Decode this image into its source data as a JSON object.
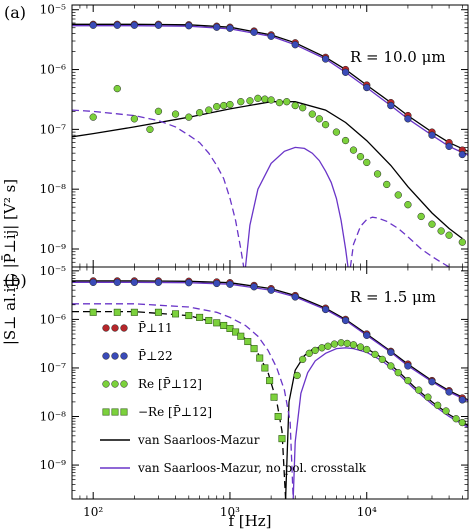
{
  "chart_data": [
    {
      "type": "scatter",
      "panel_label": "(a)",
      "annotation": "R = 10.0 μm",
      "xscale": "log",
      "yscale": "log",
      "xlim": [
        70,
        55000
      ],
      "ylim": [
        5e-10,
        1.2e-05
      ],
      "yticks": [
        "10⁻⁹",
        "10⁻⁸",
        "10⁻⁷",
        "10⁻⁶",
        "10⁻⁵"
      ],
      "series": [
        {
          "key": "P11",
          "kind": "markers",
          "marker": "circle",
          "color": "#b5262a",
          "x": [
            100,
            150,
            200,
            300,
            500,
            800,
            1000,
            1500,
            2000,
            3000,
            5000,
            7000,
            10000,
            15000,
            20000,
            30000,
            40000,
            50000
          ],
          "y": [
            5.7e-06,
            5.7e-06,
            5.7e-06,
            5.7e-06,
            5.6e-06,
            5.3e-06,
            5.1e-06,
            4.4e-06,
            3.8e-06,
            2.8e-06,
            1.6e-06,
            1e-06,
            5.5e-07,
            2.8e-07,
            1.7e-07,
            9e-08,
            6e-08,
            4.5e-08
          ]
        },
        {
          "key": "P22",
          "kind": "markers",
          "marker": "circle",
          "color": "#3a4bb8",
          "x": [
            100,
            150,
            200,
            300,
            500,
            800,
            1000,
            1500,
            2000,
            3000,
            5000,
            7000,
            10000,
            15000,
            20000,
            30000,
            40000,
            50000
          ],
          "y": [
            5.5e-06,
            5.5e-06,
            5.5e-06,
            5.5e-06,
            5.4e-06,
            5.1e-06,
            4.9e-06,
            4.2e-06,
            3.6e-06,
            2.6e-06,
            1.5e-06,
            9e-07,
            5e-07,
            2.5e-07,
            1.5e-07,
            8e-08,
            5.2e-08,
            3.8e-08
          ]
        },
        {
          "key": "ReP12",
          "kind": "markers",
          "marker": "circle",
          "color": "#7cd13c",
          "x": [
            100,
            150,
            200,
            260,
            300,
            400,
            500,
            600,
            700,
            800,
            900,
            1000,
            1200,
            1400,
            1600,
            1800,
            2000,
            2300,
            2600,
            3000,
            3400,
            4000,
            4500,
            5000,
            6000,
            7000,
            8000,
            9000,
            10000,
            12000,
            14000,
            17000,
            20000,
            25000,
            30000,
            35000,
            40000,
            50000
          ],
          "y": [
            1.6e-07,
            4.8e-07,
            1.5e-07,
            1e-07,
            2e-07,
            1.8e-07,
            1.6e-07,
            1.9e-07,
            2.1e-07,
            2.4e-07,
            2.5e-07,
            2.6e-07,
            2.9e-07,
            3e-07,
            3.3e-07,
            3.2e-07,
            3.1e-07,
            2.8e-07,
            2.9e-07,
            2.5e-07,
            2.3e-07,
            1.8e-07,
            1.5e-07,
            1.2e-07,
            9e-08,
            6.5e-08,
            4.5e-08,
            3.5e-08,
            2.8e-08,
            1.8e-08,
            1.2e-08,
            8e-09,
            5.5e-09,
            3.5e-09,
            2.6e-09,
            2e-09,
            1.7e-09,
            1.3e-09
          ]
        },
        {
          "key": "vsm",
          "kind": "line",
          "color": "#000000",
          "dash": "",
          "x": [
            70,
            100,
            200,
            500,
            1000,
            2000,
            3000,
            5000,
            7000,
            10000,
            15000,
            20000,
            30000,
            40000,
            50000
          ],
          "y": [
            7.5e-08,
            8.5e-08,
            1.1e-07,
            1.6e-07,
            2.2e-07,
            2.9e-07,
            2.9e-07,
            2.1e-07,
            1.3e-07,
            6.5e-08,
            2.5e-08,
            1.1e-08,
            4e-09,
            2.2e-09,
            1.5e-09
          ]
        },
        {
          "key": "vsm_P11",
          "kind": "line",
          "color": "#000000",
          "dash": "",
          "x": [
            70,
            200,
            500,
            1000,
            2000,
            3000,
            5000,
            7000,
            10000,
            15000,
            20000,
            30000,
            40000,
            55000
          ],
          "y": [
            5.7e-06,
            5.7e-06,
            5.6e-06,
            5.1e-06,
            3.8e-06,
            2.8e-06,
            1.6e-06,
            1e-06,
            5.5e-07,
            2.8e-07,
            1.7e-07,
            9e-08,
            6e-08,
            4.3e-08
          ]
        },
        {
          "key": "nopol",
          "kind": "line",
          "color": "#6a35c8",
          "dash": "",
          "x": [
            70,
            200,
            500,
            1000,
            2000,
            3000,
            5000,
            7000,
            10000,
            15000,
            20000,
            30000,
            40000,
            55000
          ],
          "y": [
            5.4e-06,
            5.4e-06,
            5.3e-06,
            4.8e-06,
            3.6e-06,
            2.6e-06,
            1.5e-06,
            9e-07,
            5e-07,
            2.5e-07,
            1.5e-07,
            8e-08,
            5.2e-08,
            3.7e-08
          ]
        },
        {
          "key": "nopol_cross",
          "kind": "line",
          "color": "#6a35c8",
          "dash": "",
          "x": [
            1300,
            1400,
            1600,
            2000,
            2500,
            3000,
            3500,
            4000,
            4500,
            5000,
            5500,
            6000,
            6500,
            7000,
            7300
          ],
          "y": [
            5e-10,
            2.5e-09,
            1e-08,
            2.7e-08,
            4.3e-08,
            5e-08,
            4.8e-08,
            4e-08,
            3e-08,
            2e-08,
            1.3e-08,
            7e-09,
            3e-09,
            1e-09,
            5e-10
          ]
        },
        {
          "key": "nopol_dash",
          "kind": "line",
          "color": "#6a35c8",
          "dash": "7 4",
          "x": [
            70,
            100,
            200,
            300,
            400,
            500,
            600,
            700,
            800,
            900,
            1000,
            1100,
            1200,
            1260
          ],
          "y": [
            2.1e-07,
            2e-07,
            1.7e-07,
            1.4e-07,
            1.1e-07,
            8e-08,
            6e-08,
            4e-08,
            2.5e-08,
            1.5e-08,
            7e-09,
            3e-09,
            1e-09,
            5e-10
          ]
        },
        {
          "key": "nopol_dash2",
          "kind": "line",
          "color": "#6a35c8",
          "dash": "7 4",
          "x": [
            7600,
            8000,
            9000,
            10000,
            11000,
            12000,
            14000,
            17000,
            20000,
            25000,
            30000,
            35000,
            40000
          ],
          "y": [
            5e-10,
            1.2e-09,
            2.4e-09,
            3.1e-09,
            3.4e-09,
            3.3e-09,
            2.9e-09,
            2.2e-09,
            1.6e-09,
            1e-09,
            7.5e-10,
            6e-10,
            5e-10
          ]
        }
      ]
    },
    {
      "type": "scatter",
      "panel_label": "(b)",
      "annotation": "R = 1.5 μm",
      "xscale": "log",
      "yscale": "log",
      "xlim": [
        70,
        55000
      ],
      "ylim": [
        2e-10,
        1.2e-05
      ],
      "xticks": [
        "10²",
        "10³",
        "10⁴"
      ],
      "yticks": [
        "10⁻⁹",
        "10⁻⁸",
        "10⁻⁷",
        "10⁻⁶",
        "10⁻⁵"
      ],
      "series": [
        {
          "key": "P11",
          "kind": "markers",
          "marker": "circle",
          "color": "#b5262a",
          "x": [
            100,
            150,
            200,
            300,
            500,
            800,
            1000,
            1500,
            2000,
            3000,
            5000,
            7000,
            10000,
            15000,
            20000,
            30000,
            40000,
            50000
          ],
          "y": [
            6.2e-06,
            6.2e-06,
            6.2e-06,
            6.2e-06,
            6.1e-06,
            5.9e-06,
            5.7e-06,
            5e-06,
            4.3e-06,
            3.1e-06,
            1.7e-06,
            1e-06,
            5e-07,
            2.2e-07,
            1.2e-07,
            5.5e-08,
            3.4e-08,
            2.4e-08
          ]
        },
        {
          "key": "P22",
          "kind": "markers",
          "marker": "circle",
          "color": "#3a4bb8",
          "x": [
            100,
            150,
            200,
            300,
            500,
            800,
            1000,
            1500,
            2000,
            3000,
            5000,
            7000,
            10000,
            15000,
            20000,
            30000,
            40000,
            50000
          ],
          "y": [
            5.8e-06,
            5.8e-06,
            5.8e-06,
            5.8e-06,
            5.7e-06,
            5.5e-06,
            5.3e-06,
            4.7e-06,
            4e-06,
            2.9e-06,
            1.6e-06,
            9.5e-07,
            4.7e-07,
            2.1e-07,
            1.1e-07,
            5.2e-08,
            3.2e-08,
            2.2e-08
          ]
        },
        {
          "key": "ReP12",
          "kind": "markers",
          "marker": "circle",
          "color": "#7cd13c",
          "x": [
            3100,
            3400,
            3800,
            4200,
            4700,
            5200,
            5800,
            6500,
            7200,
            8000,
            9000,
            10000,
            11500,
            13000,
            15000,
            17000,
            20000,
            24000,
            28000,
            33000,
            38000,
            45000,
            50000
          ],
          "y": [
            7e-08,
            1.5e-07,
            2e-07,
            2.3e-07,
            2.6e-07,
            2.8e-07,
            3.1e-07,
            3.3e-07,
            3.2e-07,
            3e-07,
            2.7e-07,
            2.4e-07,
            1.9e-07,
            1.5e-07,
            1.1e-07,
            8e-08,
            5.5e-08,
            3.5e-08,
            2.5e-08,
            1.7e-08,
            1.3e-08,
            9e-09,
            7.5e-09
          ]
        },
        {
          "key": "mReP12",
          "kind": "markers",
          "marker": "square",
          "color": "#7cd13c",
          "x": [
            100,
            150,
            200,
            300,
            400,
            500,
            600,
            700,
            800,
            900,
            1000,
            1100,
            1200,
            1350,
            1500,
            1650,
            1800,
            1950,
            2100,
            2250,
            2400
          ],
          "y": [
            1.4e-06,
            1.4e-06,
            1.4e-06,
            1.4e-06,
            1.3e-06,
            1.2e-06,
            1.1e-06,
            9.5e-07,
            8.5e-07,
            7.5e-07,
            6.5e-07,
            5.5e-07,
            4.5e-07,
            3.5e-07,
            2.5e-07,
            1.6e-07,
            1e-07,
            5.5e-08,
            2.5e-08,
            1e-08,
            3.5e-09
          ]
        },
        {
          "key": "vsm",
          "kind": "line",
          "color": "#000000",
          "dash": "7 4",
          "x": [
            70,
            200,
            500,
            800,
            1000,
            1300,
            1600,
            1900,
            2200,
            2400,
            2550
          ],
          "y": [
            1.45e-06,
            1.45e-06,
            1.2e-06,
            8.5e-07,
            6.5e-07,
            4e-07,
            2e-07,
            8e-08,
            2e-08,
            5e-09,
            2e-10
          ]
        },
        {
          "key": "vsm_pos",
          "kind": "line",
          "color": "#000000",
          "dash": "",
          "x": [
            2550,
            2700,
            3000,
            3500,
            4000,
            5000,
            6000,
            7000,
            8000,
            10000,
            13000,
            17000,
            22000,
            30000,
            40000,
            55000
          ],
          "y": [
            2e-10,
            2e-08,
            9e-08,
            1.8e-07,
            2.4e-07,
            2.9e-07,
            3.2e-07,
            3.3e-07,
            3.1e-07,
            2.5e-07,
            1.6e-07,
            8.5e-08,
            4.2e-08,
            2e-08,
            1.1e-08,
            6.5e-09
          ]
        },
        {
          "key": "vsm_P11",
          "kind": "line",
          "color": "#000000",
          "dash": "",
          "x": [
            70,
            200,
            500,
            1000,
            2000,
            3000,
            5000,
            7000,
            10000,
            15000,
            20000,
            30000,
            40000,
            55000
          ],
          "y": [
            6.2e-06,
            6.2e-06,
            6.1e-06,
            5.7e-06,
            4.3e-06,
            3.1e-06,
            1.7e-06,
            1e-06,
            5e-07,
            2.2e-07,
            1.2e-07,
            5.5e-08,
            3.4e-08,
            2.2e-08
          ]
        },
        {
          "key": "nopol",
          "kind": "line",
          "color": "#6a35c8",
          "dash": "",
          "x": [
            70,
            200,
            500,
            1000,
            2000,
            3000,
            5000,
            7000,
            10000,
            15000,
            20000,
            30000,
            40000,
            55000
          ],
          "y": [
            5.8e-06,
            5.8e-06,
            5.7e-06,
            5.3e-06,
            4e-06,
            2.9e-06,
            1.6e-06,
            9.5e-07,
            4.7e-07,
            2.1e-07,
            1.1e-07,
            5.2e-08,
            3.2e-08,
            2.1e-08
          ]
        },
        {
          "key": "nopol_dash",
          "kind": "line",
          "color": "#6a35c8",
          "dash": "7 4",
          "x": [
            70,
            200,
            500,
            800,
            1000,
            1300,
            1600,
            1900,
            2200,
            2500,
            2750,
            2900
          ],
          "y": [
            2.1e-06,
            2.1e-06,
            1.8e-06,
            1.4e-06,
            1.1e-06,
            7.5e-07,
            4.5e-07,
            2.3e-07,
            1e-07,
            3.5e-08,
            8e-09,
            2e-10
          ]
        },
        {
          "key": "nopol_pos",
          "kind": "line",
          "color": "#6a35c8",
          "dash": "",
          "x": [
            2900,
            3000,
            3300,
            3700,
            4200,
            5000,
            6000,
            7000,
            8000,
            10000,
            13000,
            17000,
            22000,
            30000,
            40000,
            55000
          ],
          "y": [
            2e-10,
            3e-09,
            3e-08,
            8e-08,
            1.4e-07,
            2e-07,
            2.5e-07,
            2.6e-07,
            2.5e-07,
            2.1e-07,
            1.4e-07,
            7.5e-08,
            3.8e-08,
            1.8e-08,
            1e-08,
            6e-09
          ]
        }
      ]
    }
  ],
  "xlabel": "f [Hz]",
  "ylabel": "|S⊥ al.ij|, |P̄⊥ij| [V² s]",
  "legend": [
    {
      "marker": "circle",
      "color": "#b5262a",
      "label": "P̄⊥11"
    },
    {
      "marker": "circle",
      "color": "#3a4bb8",
      "label": "P̄⊥22"
    },
    {
      "marker": "circle",
      "color": "#7cd13c",
      "label": "Re [P̄⊥12]"
    },
    {
      "marker": "square",
      "color": "#7cd13c",
      "label": "−Re [P̄⊥12]"
    },
    {
      "marker": "line",
      "color": "#000000",
      "label": "van Saarloos-Mazur"
    },
    {
      "marker": "line",
      "color": "#6a35c8",
      "label": "van Saarloos-Mazur, no pol. crosstalk"
    }
  ]
}
